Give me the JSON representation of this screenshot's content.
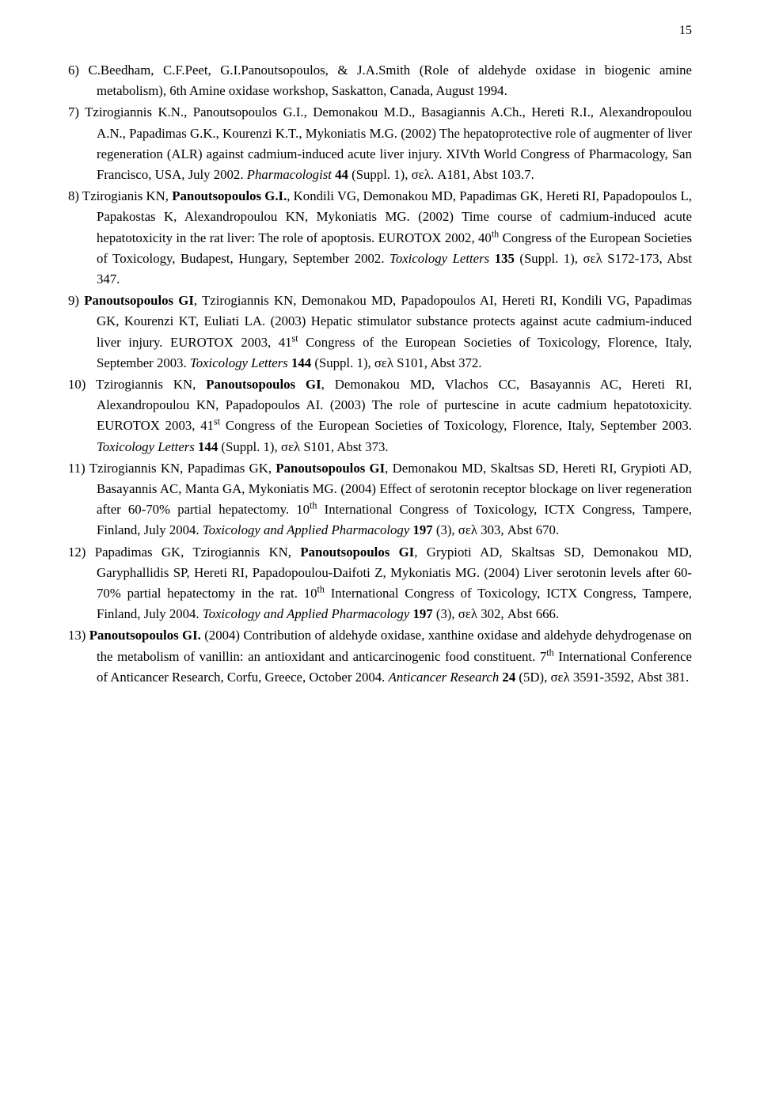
{
  "page_number_label": "15",
  "references": [
    {
      "num": "6)",
      "segments": [
        {
          "t": "C.Beedham, C.F.Peet, G.I.Panoutsopoulos, & J.A.Smith (Role of aldehyde oxidase in biogenic amine metabolism), 6th Amine oxidase workshop, Saskatton, Canada, August 1994."
        }
      ]
    },
    {
      "num": "7)",
      "segments": [
        {
          "t": "Tzirogiannis K.N., Panoutsopoulos G.I., Demonakou M.D., Basagiannis A.Ch., Hereti R.I., Alexandropoulou A.N., Papadimas G.K., Kourenzi K.T., Mykoniatis M.G. (2002) The hepatoprotective role of augmenter of liver regeneration (ALR) against cadmium-induced acute liver injury. XIVth World Congress of Pharmacology, San Francisco, USA, July 2002. "
        },
        {
          "t": "Pharmacologist ",
          "italic": true
        },
        {
          "t": "44",
          "bold": true
        },
        {
          "t": " (Suppl. 1), σελ. A181, Abst 103.7."
        }
      ]
    },
    {
      "num": "8)",
      "segments": [
        {
          "t": "Tzirogianis KN, "
        },
        {
          "t": "Panoutsopoulos G.I.",
          "bold": true
        },
        {
          "t": ", Kondili VG, Demonakou MD, Papadimas GK, Hereti RI, Papadopoulos L, Papakostas K, Alexandropoulou KN, Mykoniatis MG. (2002) Time course of cadmium-induced acute hepatotoxicity in the rat liver: The role of apoptosis. EUROTOX 2002, 40"
        },
        {
          "t": "th",
          "sup": true
        },
        {
          "t": " Congress of the European Societies of Toxicology, Budapest, Hungary, September 2002. "
        },
        {
          "t": "Toxicology Letters ",
          "italic": true
        },
        {
          "t": "135",
          "bold": true
        },
        {
          "t": " (Suppl. 1), σελ S172-173, Abst 347."
        }
      ]
    },
    {
      "num": "9)",
      "segments": [
        {
          "t": "Panoutsopoulos GI",
          "bold": true
        },
        {
          "t": ", Tzirogiannis KN, Demonakou MD, Papadopoulos AI, Hereti RI, Kondili VG, Papadimas GK, Kourenzi KT, Euliati LA. (2003) Hepatic stimulator substance protects against acute cadmium-induced liver injury. EUROTOX 2003, 41"
        },
        {
          "t": "st",
          "sup": true
        },
        {
          "t": " Congress of the European Societies of Toxicology, Florence, Italy, September 2003. "
        },
        {
          "t": "Toxicology Letters ",
          "italic": true
        },
        {
          "t": "144",
          "bold": true
        },
        {
          "t": " (Suppl. 1), σελ S101, Abst 372."
        }
      ]
    },
    {
      "num": "10)",
      "segments": [
        {
          "t": "Tzirogiannis KN, "
        },
        {
          "t": "Panoutsopoulos GI",
          "bold": true
        },
        {
          "t": ", Demonakou MD, Vlachos CC, Basayannis AC, Hereti RI, Alexandropoulou KN, Papadopoulos AI. (2003) The role of purtescine in acute cadmium hepatotoxicity. EUROTOX 2003, 41"
        },
        {
          "t": "st",
          "sup": true
        },
        {
          "t": " Congress of the European Societies of Toxicology, Florence, Italy, September 2003. "
        },
        {
          "t": "Toxicology Letters ",
          "italic": true
        },
        {
          "t": "144",
          "bold": true
        },
        {
          "t": " (Suppl. 1), σελ S101, Abst 373."
        }
      ]
    },
    {
      "num": "11)",
      "segments": [
        {
          "t": "Tzirogiannis KN, Papadimas GK, "
        },
        {
          "t": "Panoutsopoulos GI",
          "bold": true
        },
        {
          "t": ", Demonakou MD, Skaltsas SD, Hereti RI, Grypioti AD, Basayannis AC, Manta GA, Mykoniatis MG. (2004) Effect of serotonin receptor blockage on liver regeneration after 60-70% partial hepatectomy. 10"
        },
        {
          "t": "th",
          "sup": true
        },
        {
          "t": " International Congress of Toxicology, ICTX Congress, Tampere, Finland, July 2004. "
        },
        {
          "t": "Toxicology and Applied Pharmacology ",
          "italic": true
        },
        {
          "t": "197",
          "bold": true
        },
        {
          "t": " (3), σελ 303, Abst 670."
        }
      ]
    },
    {
      "num": "12)",
      "segments": [
        {
          "t": "Papadimas GK, Tzirogiannis KN, "
        },
        {
          "t": "Panoutsopoulos GI",
          "bold": true
        },
        {
          "t": ", Grypioti AD, Skaltsas SD, Demonakou MD, Garyphallidis SP, Hereti RI, Papadopoulou-Daifoti Z, Mykoniatis MG. (2004) Liver serotonin levels after 60-70% partial hepatectomy in the rat. 10"
        },
        {
          "t": "th",
          "sup": true
        },
        {
          "t": " International Congress of Toxicology, ICTX Congress, Tampere, Finland, July 2004. "
        },
        {
          "t": "Toxicology and Applied Pharmacology ",
          "italic": true
        },
        {
          "t": "197",
          "bold": true
        },
        {
          "t": " (3), σελ 302, Abst 666."
        }
      ]
    },
    {
      "num": "13)",
      "segments": [
        {
          "t": "Panoutsopoulos GI.",
          "bold": true
        },
        {
          "t": " (2004) Contribution of aldehyde oxidase, xanthine oxidase and aldehyde dehydrogenase on the metabolism of vanillin: an antioxidant and anticarcinogenic food constituent. 7"
        },
        {
          "t": "th",
          "sup": true
        },
        {
          "t": " International Conference of Anticancer Research, Corfu, Greece, October 2004. "
        },
        {
          "t": "Anticancer Research ",
          "italic": true
        },
        {
          "t": "24",
          "bold": true
        },
        {
          "t": " (5D), σελ 3591-3592, Abst 381."
        }
      ]
    }
  ]
}
